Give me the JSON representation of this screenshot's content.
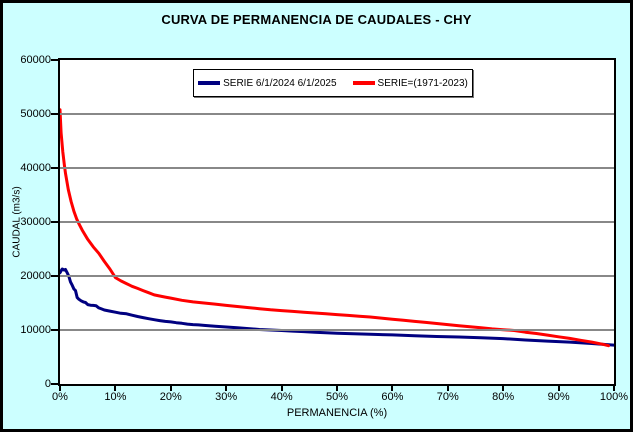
{
  "window": {
    "page_background": "#ccffff"
  },
  "chart_data": {
    "type": "line",
    "title": "CURVA DE PERMANENCIA DE CAUDALES - CHY",
    "xlabel": "PERMANENCIA (%)",
    "ylabel": "CAUDAL (m3/s)",
    "xlim": [
      0,
      100
    ],
    "ylim": [
      0,
      60000
    ],
    "x_ticks": [
      0,
      10,
      20,
      30,
      40,
      50,
      60,
      70,
      80,
      90,
      100
    ],
    "x_tick_labels": [
      "0%",
      "10%",
      "20%",
      "30%",
      "40%",
      "50%",
      "60%",
      "70%",
      "80%",
      "90%",
      "100%"
    ],
    "y_ticks": [
      0,
      10000,
      20000,
      30000,
      40000,
      50000,
      60000
    ],
    "y_tick_labels": [
      "0",
      "10000",
      "20000",
      "30000",
      "40000",
      "50000",
      "60000"
    ],
    "grid": "horizontal",
    "legend_position": "top-center-inside",
    "colors": {
      "plot_background": "#ffffff",
      "gridline": "#888888",
      "axis": "#000000"
    },
    "series": [
      {
        "name": "SERIE 6/1/2024 6/1/2025",
        "color": "#000080",
        "points": [
          [
            0,
            20600
          ],
          [
            0.4,
            21300
          ],
          [
            0.8,
            21100
          ],
          [
            1.0,
            21200
          ],
          [
            1.3,
            20600
          ],
          [
            1.6,
            19900
          ],
          [
            1.9,
            18900
          ],
          [
            2.2,
            18300
          ],
          [
            2.5,
            17600
          ],
          [
            2.8,
            17300
          ],
          [
            3.1,
            16000
          ],
          [
            3.4,
            15700
          ],
          [
            3.8,
            15400
          ],
          [
            4.2,
            15200
          ],
          [
            4.6,
            15100
          ],
          [
            5,
            14700
          ],
          [
            5.5,
            14600
          ],
          [
            6,
            14550
          ],
          [
            6.5,
            14500
          ],
          [
            7,
            14100
          ],
          [
            7.5,
            13900
          ],
          [
            8,
            13700
          ],
          [
            9,
            13500
          ],
          [
            10,
            13300
          ],
          [
            11,
            13100
          ],
          [
            12,
            13000
          ],
          [
            13,
            12750
          ],
          [
            14,
            12500
          ],
          [
            15,
            12300
          ],
          [
            16,
            12100
          ],
          [
            17,
            11900
          ],
          [
            18,
            11750
          ],
          [
            19,
            11600
          ],
          [
            20,
            11500
          ],
          [
            21,
            11350
          ],
          [
            22,
            11250
          ],
          [
            23,
            11100
          ],
          [
            24,
            11000
          ],
          [
            25,
            10950
          ],
          [
            26,
            10850
          ],
          [
            28,
            10700
          ],
          [
            30,
            10550
          ],
          [
            32,
            10400
          ],
          [
            34,
            10250
          ],
          [
            36,
            10100
          ],
          [
            38,
            10000
          ],
          [
            40,
            9900
          ],
          [
            42,
            9800
          ],
          [
            44,
            9700
          ],
          [
            46,
            9600
          ],
          [
            48,
            9500
          ],
          [
            50,
            9400
          ],
          [
            53,
            9300
          ],
          [
            56,
            9200
          ],
          [
            60,
            9100
          ],
          [
            64,
            8950
          ],
          [
            68,
            8800
          ],
          [
            72,
            8700
          ],
          [
            76,
            8550
          ],
          [
            80,
            8400
          ],
          [
            84,
            8150
          ],
          [
            88,
            7950
          ],
          [
            92,
            7750
          ],
          [
            96,
            7500
          ],
          [
            100,
            7200
          ]
        ]
      },
      {
        "name": "SERIE=(1971-2023)",
        "color": "#ff0000",
        "points": [
          [
            0,
            50800
          ],
          [
            0.2,
            46500
          ],
          [
            0.5,
            43000
          ],
          [
            0.8,
            40500
          ],
          [
            1,
            39000
          ],
          [
            1.5,
            36000
          ],
          [
            2,
            33800
          ],
          [
            2.5,
            32000
          ],
          [
            3,
            30600
          ],
          [
            3.5,
            29500
          ],
          [
            4,
            28500
          ],
          [
            5,
            26800
          ],
          [
            6,
            25400
          ],
          [
            7,
            24200
          ],
          [
            8,
            22700
          ],
          [
            9,
            21300
          ],
          [
            10,
            19700
          ],
          [
            11,
            19100
          ],
          [
            12,
            18600
          ],
          [
            13,
            18100
          ],
          [
            14,
            17700
          ],
          [
            15,
            17300
          ],
          [
            16,
            16900
          ],
          [
            17,
            16500
          ],
          [
            18,
            16300
          ],
          [
            19,
            16100
          ],
          [
            20,
            15900
          ],
          [
            22,
            15500
          ],
          [
            24,
            15200
          ],
          [
            26,
            15000
          ],
          [
            28,
            14800
          ],
          [
            30,
            14550
          ],
          [
            32,
            14350
          ],
          [
            34,
            14150
          ],
          [
            36,
            13950
          ],
          [
            38,
            13750
          ],
          [
            40,
            13600
          ],
          [
            42,
            13450
          ],
          [
            44,
            13300
          ],
          [
            46,
            13150
          ],
          [
            48,
            13000
          ],
          [
            50,
            12850
          ],
          [
            52,
            12700
          ],
          [
            54,
            12550
          ],
          [
            56,
            12400
          ],
          [
            58,
            12200
          ],
          [
            60,
            12000
          ],
          [
            62,
            11800
          ],
          [
            64,
            11600
          ],
          [
            66,
            11400
          ],
          [
            68,
            11200
          ],
          [
            70,
            11000
          ],
          [
            72,
            10800
          ],
          [
            74,
            10600
          ],
          [
            76,
            10400
          ],
          [
            78,
            10200
          ],
          [
            80,
            10050
          ],
          [
            82,
            9900
          ],
          [
            84,
            9600
          ],
          [
            86,
            9350
          ],
          [
            88,
            9050
          ],
          [
            90,
            8750
          ],
          [
            92,
            8450
          ],
          [
            94,
            8100
          ],
          [
            96,
            7750
          ],
          [
            98,
            7350
          ],
          [
            99,
            7100
          ]
        ]
      }
    ]
  }
}
